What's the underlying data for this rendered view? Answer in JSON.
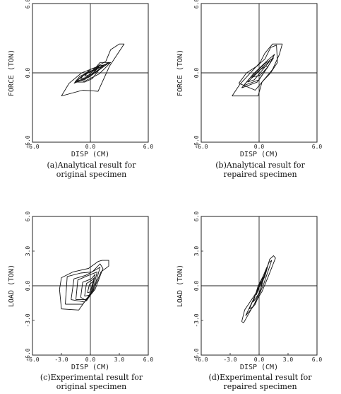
{
  "chart_data": [
    {
      "type": "line",
      "xlabel": "DISP (CM)",
      "ylabel": "FORCE (TON)",
      "xlim": [
        -6,
        6
      ],
      "ylim": [
        -6,
        6
      ],
      "xticks": [
        "-6.0",
        "0.0",
        "6.0"
      ],
      "yticks": [
        "-6.0",
        "0.0",
        "6.0"
      ],
      "caption": [
        "(a)Analytical result for",
        "original specimen"
      ],
      "series": [
        {
          "x": [
            -1.6,
            -0.6,
            0.2,
            1.2,
            2.1,
            1.4,
            0.9,
            -0.8,
            -1.6
          ],
          "y": [
            -0.8,
            -0.8,
            -0.5,
            0.6,
            0.9,
            0.3,
            -0.1,
            -0.8,
            -0.8
          ]
        },
        {
          "x": [
            -1.6,
            -1.1,
            0.2,
            1.0,
            0.3,
            -0.6,
            -1.6
          ],
          "y": [
            -0.8,
            -0.3,
            0.2,
            0.7,
            0.0,
            -0.6,
            -0.8
          ]
        },
        {
          "x": [
            -1.7,
            -0.9,
            0.3,
            1.0,
            2.0,
            -0.2,
            -1.7
          ],
          "y": [
            -0.9,
            -0.3,
            0.2,
            0.9,
            0.9,
            -0.4,
            -0.9
          ]
        },
        {
          "x": [
            -1.4,
            -0.7,
            0.0,
            1.0,
            1.9,
            0.2,
            -0.6,
            -1.4
          ],
          "y": [
            -0.7,
            -0.2,
            0.3,
            0.5,
            0.9,
            0.1,
            -0.5,
            -0.7
          ]
        },
        {
          "x": [
            -1.0,
            -0.5,
            0.4,
            0.9,
            1.5,
            0.4,
            -0.4,
            -1.0
          ],
          "y": [
            -0.5,
            0.0,
            0.2,
            0.6,
            0.7,
            0.0,
            -0.4,
            -0.5
          ]
        },
        {
          "x": [
            -0.6,
            -0.2,
            0.5,
            0.8,
            0.9,
            0.2,
            -0.6
          ],
          "y": [
            -0.3,
            0.1,
            0.3,
            0.5,
            0.5,
            -0.1,
            -0.3
          ]
        },
        {
          "x": [
            -3.0,
            -2.2,
            -0.9,
            0.6,
            1.6,
            2.1,
            3.0,
            3.5,
            2.0,
            0.8,
            -0.8,
            -3.0
          ],
          "y": [
            -2.0,
            -0.9,
            0.0,
            0.5,
            1.0,
            2.0,
            2.5,
            2.5,
            0.6,
            -1.6,
            -1.5,
            -2.0
          ]
        }
      ]
    },
    {
      "type": "line",
      "xlabel": "DISP (CM)",
      "ylabel": "FORCE (TON)",
      "xlim": [
        -6,
        6
      ],
      "ylim": [
        -6,
        6
      ],
      "xticks": [
        "-6.0",
        "0.0",
        "6.0"
      ],
      "yticks": [
        "-6.0",
        "0.0",
        "6.0"
      ],
      "caption": [
        "(b)Analytical result for",
        "repaired specimen"
      ],
      "series": [
        {
          "x": [
            -1.6,
            -0.8,
            0.6,
            1.5,
            0.8,
            0.0,
            -1.6
          ],
          "y": [
            -1.1,
            -0.3,
            0.8,
            1.3,
            0.4,
            -0.6,
            -1.1
          ]
        },
        {
          "x": [
            -1.8,
            -0.6,
            0.9,
            1.6,
            0.9,
            -0.2,
            -1.8
          ],
          "y": [
            -1.3,
            -0.1,
            1.1,
            1.6,
            0.5,
            -0.8,
            -1.3
          ]
        },
        {
          "x": [
            -1.2,
            -0.3,
            0.5,
            1.1,
            0.3,
            -0.5,
            -1.2
          ],
          "y": [
            -0.8,
            -0.1,
            0.6,
            1.0,
            0.2,
            -0.6,
            -0.8
          ]
        },
        {
          "x": [
            -0.8,
            0.0,
            0.7,
            0.9,
            0.1,
            -0.8
          ],
          "y": [
            -0.4,
            0.2,
            0.6,
            0.5,
            -0.2,
            -0.4
          ]
        },
        {
          "x": [
            -2.1,
            -1.3,
            -0.2,
            0.6,
            1.2,
            1.8,
            1.9,
            1.2,
            0.3,
            -0.4,
            -2.1
          ],
          "y": [
            -0.9,
            0.0,
            0.6,
            1.2,
            2.2,
            2.4,
            0.9,
            0.0,
            -0.8,
            -1.5,
            -0.9
          ]
        },
        {
          "x": [
            -2.8,
            -2.0,
            -0.8,
            0.1,
            0.6,
            1.4,
            2.4,
            2.1,
            1.4,
            0.3,
            -0.1,
            -2.8
          ],
          "y": [
            -2.0,
            -1.0,
            0.1,
            0.9,
            1.7,
            2.5,
            2.5,
            1.6,
            0.3,
            -0.8,
            -2.0,
            -2.0
          ]
        }
      ]
    },
    {
      "type": "line",
      "xlabel": "DISP (CM)",
      "ylabel": "LOAD (TON)",
      "xlim": [
        -6,
        6
      ],
      "ylim": [
        -6,
        6
      ],
      "xticks": [
        "-6.0",
        "-3.0",
        "0.0",
        "3.0",
        "6.0"
      ],
      "yticks": [
        "-6.0",
        "-3.0",
        "0.0",
        "3.0",
        "6.0"
      ],
      "caption": [
        "(c)Experimental result for",
        "original specimen"
      ],
      "series": [
        {
          "x": [
            -3.0,
            -3.2,
            -3.0,
            -1.8,
            -0.2,
            0.8,
            1.2,
            1.9,
            1.9,
            1.1,
            0.4,
            -1.2,
            -3.0
          ],
          "y": [
            -2.0,
            -0.3,
            0.7,
            1.2,
            1.5,
            2.1,
            2.2,
            2.2,
            1.7,
            1.2,
            -0.2,
            -2.1,
            -2.0
          ]
        },
        {
          "x": [
            -2.6,
            -2.4,
            -1.0,
            0.2,
            1.0,
            1.3,
            0.5,
            -0.8,
            -2.6
          ],
          "y": [
            -1.6,
            0.8,
            1.1,
            1.2,
            1.9,
            1.5,
            -0.3,
            -1.6,
            -1.6
          ]
        },
        {
          "x": [
            -2.0,
            -1.7,
            -0.5,
            0.6,
            1.0,
            0.3,
            -0.6,
            -2.0
          ],
          "y": [
            -1.2,
            0.6,
            0.9,
            1.4,
            1.6,
            -0.5,
            -1.4,
            -1.2
          ]
        },
        {
          "x": [
            -1.5,
            -1.3,
            -0.2,
            0.7,
            0.2,
            -0.5,
            -1.5
          ],
          "y": [
            -1.2,
            0.5,
            0.9,
            1.2,
            -0.6,
            -1.2,
            -1.2
          ]
        },
        {
          "x": [
            -1.0,
            -0.8,
            0.1,
            0.5,
            0.1,
            -0.4,
            -1.0
          ],
          "y": [
            -1.0,
            0.3,
            0.6,
            1.0,
            -0.7,
            -1.3,
            -1.0
          ]
        },
        {
          "x": [
            -0.6,
            -0.4,
            0.2,
            0.4,
            -0.1,
            -0.6
          ],
          "y": [
            -0.9,
            0.2,
            0.5,
            0.7,
            -0.8,
            -0.9
          ]
        },
        {
          "x": [
            -0.3,
            -0.1,
            0.3,
            0.1,
            -0.3
          ],
          "y": [
            -0.6,
            0.1,
            0.4,
            -0.5,
            -0.6
          ]
        }
      ]
    },
    {
      "type": "line",
      "xlabel": "DISP (CM)",
      "ylabel": "LOAD (TON)",
      "xlim": [
        -6,
        6
      ],
      "ylim": [
        -6,
        6
      ],
      "xticks": [
        "-6.0",
        "-3.0",
        "0.0",
        "3.0",
        "6.0"
      ],
      "yticks": [
        "-6.0",
        "-3.0",
        "0.0",
        "3.0",
        "6.0"
      ],
      "caption": [
        "(d)Experimental result for",
        "repaired specimen"
      ],
      "series": [
        {
          "x": [
            -1.8,
            -1.5,
            -0.3,
            0.6,
            1.1,
            1.5,
            1.7,
            0.9,
            0.3,
            -0.8,
            -1.6,
            -1.8
          ],
          "y": [
            -3.1,
            -2.1,
            -0.6,
            0.8,
            2.3,
            2.6,
            2.4,
            0.7,
            -0.5,
            -2.0,
            -3.2,
            -3.1
          ]
        },
        {
          "x": [
            -1.4,
            -0.5,
            0.4,
            1.0,
            1.3,
            0.5,
            -0.4,
            -1.4
          ],
          "y": [
            -2.6,
            -1.0,
            0.6,
            2.0,
            2.2,
            0.2,
            -1.6,
            -2.6
          ]
        },
        {
          "x": [
            -1.0,
            -0.3,
            0.4,
            0.8,
            0.2,
            -0.6,
            -1.0
          ],
          "y": [
            -2.0,
            -0.6,
            0.8,
            1.6,
            -0.2,
            -1.8,
            -2.0
          ]
        },
        {
          "x": [
            -0.6,
            -0.1,
            0.4,
            0.1,
            -0.6
          ],
          "y": [
            -1.4,
            0.0,
            0.8,
            -0.5,
            -1.4
          ]
        },
        {
          "x": [
            -0.3,
            0.0,
            0.2,
            -0.1,
            -0.3
          ],
          "y": [
            -0.8,
            0.0,
            0.4,
            -0.4,
            -0.8
          ]
        }
      ]
    }
  ]
}
